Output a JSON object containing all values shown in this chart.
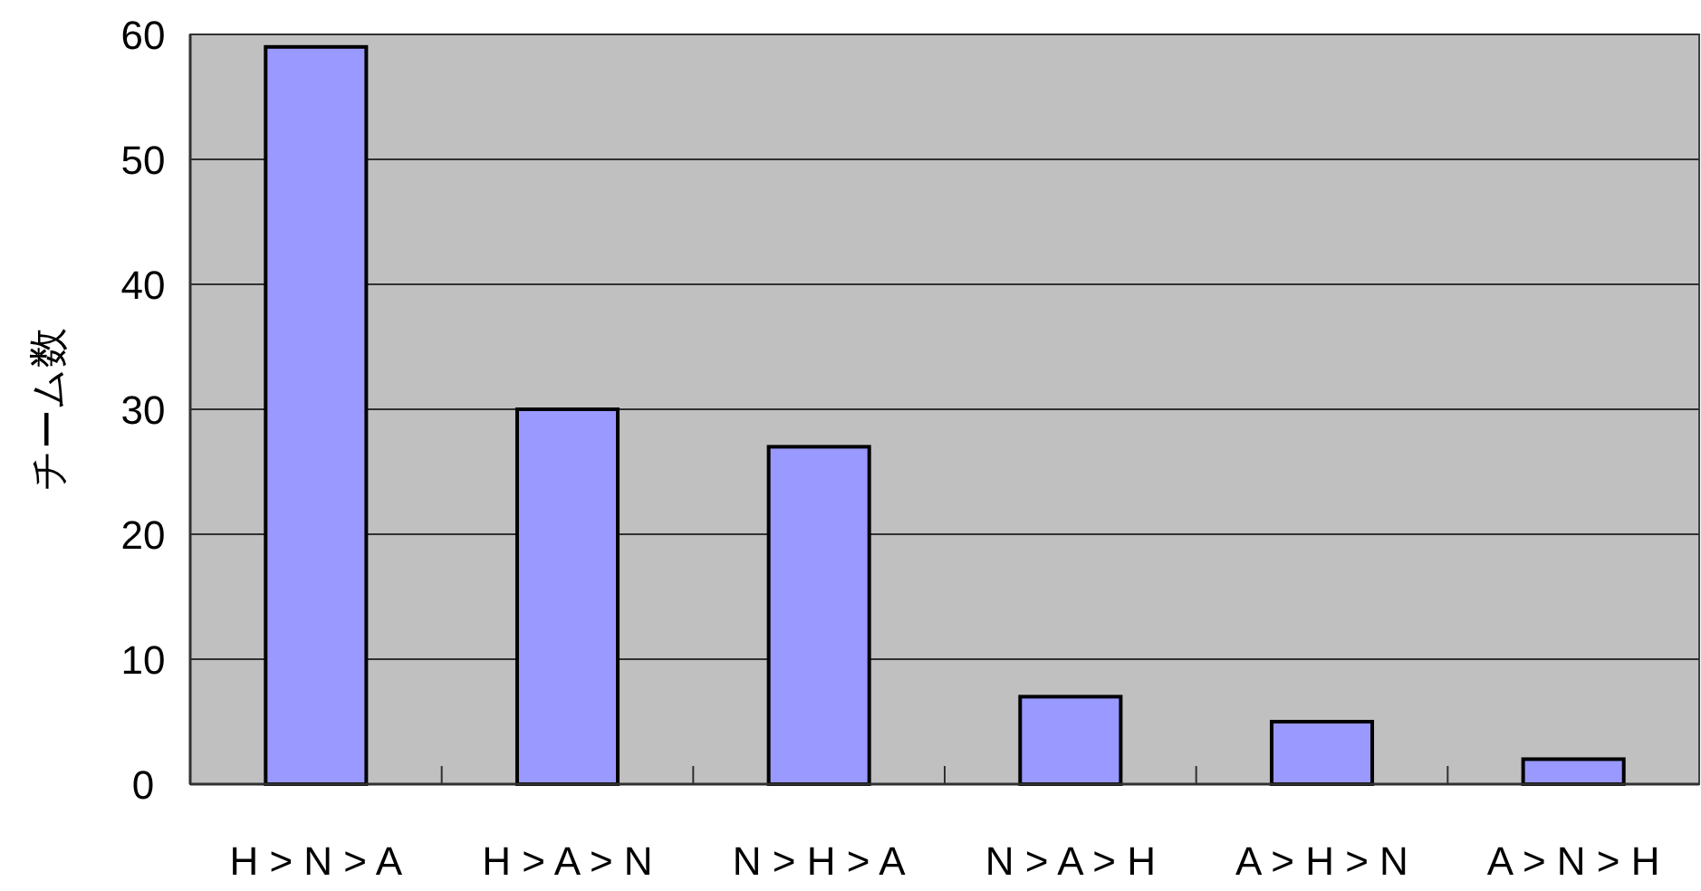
{
  "chart_data": {
    "type": "bar",
    "ylabel": "チーム数",
    "categories": [
      "H > N > A",
      "H > A > N",
      "N > H > A",
      "N > A > H",
      "A > H > N",
      "A > N > H"
    ],
    "values": [
      59,
      30,
      27,
      7,
      5,
      2
    ],
    "color": "#9999ff",
    "ylim": [
      0,
      60
    ],
    "yticks": [
      0,
      10,
      20,
      30,
      40,
      50,
      60
    ],
    "grid": "y"
  }
}
